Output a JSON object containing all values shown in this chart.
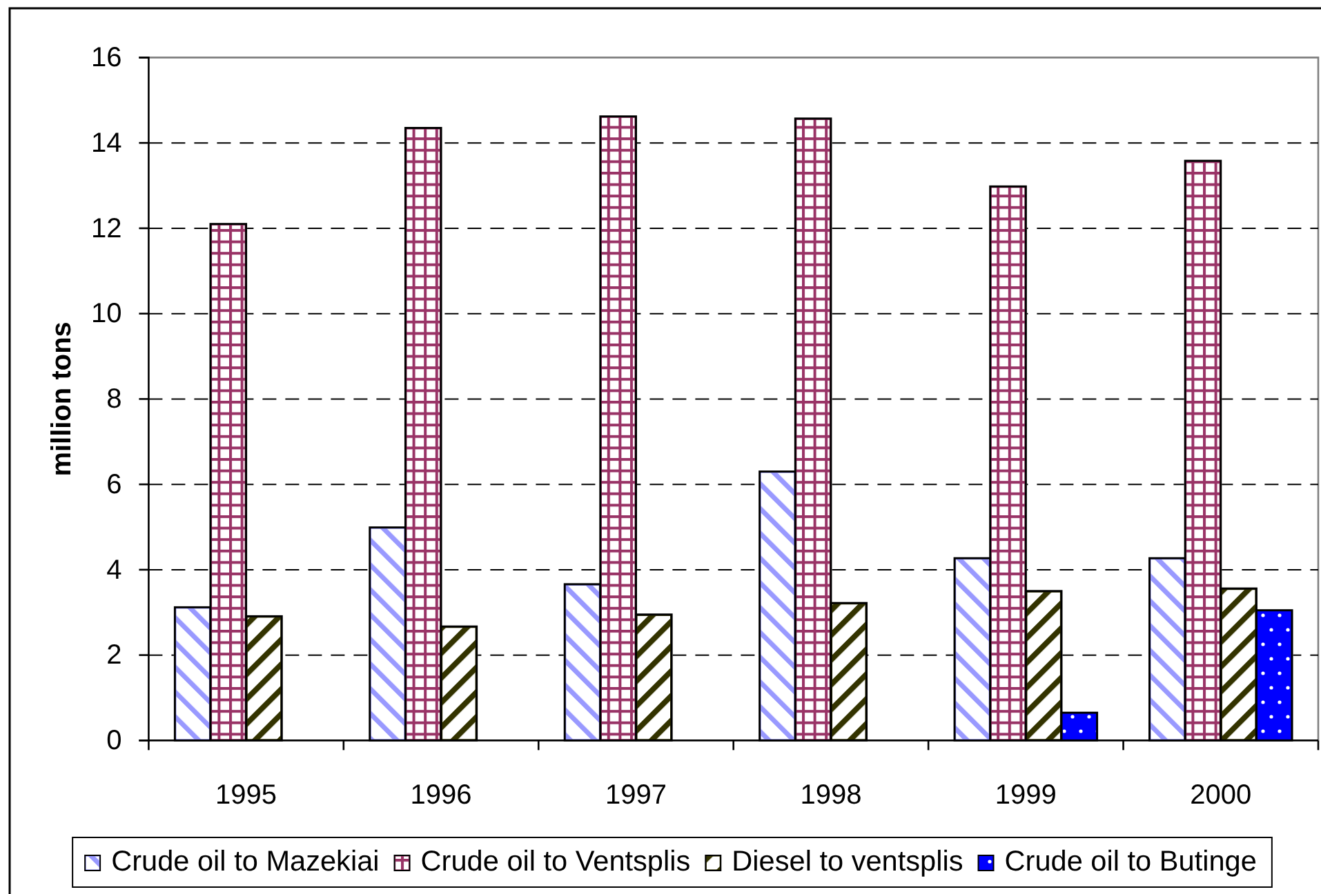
{
  "chart_data": {
    "type": "bar",
    "ylabel": "million tons",
    "categories": [
      "1995",
      "1996",
      "1997",
      "1998",
      "1999",
      "2000"
    ],
    "series": [
      {
        "name": "Crude oil to Mazekiai",
        "color": "#9999ff",
        "values": [
          3.12,
          4.99,
          3.66,
          6.3,
          4.27,
          4.27
        ]
      },
      {
        "name": "Crude oil to Ventsplis",
        "color": "#993366",
        "values": [
          12.1,
          14.35,
          14.62,
          14.57,
          12.98,
          13.58
        ]
      },
      {
        "name": "Diesel to ventsplis",
        "color": "#333300",
        "values": [
          2.91,
          2.67,
          2.95,
          3.22,
          3.5,
          3.56
        ]
      },
      {
        "name": "Crude oil to Butinge",
        "color": "#0000ff",
        "values": [
          null,
          null,
          null,
          null,
          0.65,
          3.05
        ]
      }
    ],
    "ylim": [
      0,
      16
    ],
    "yticks": [
      0,
      2,
      4,
      6,
      8,
      10,
      12,
      14,
      16
    ],
    "grid": "y",
    "legend": "bottom"
  }
}
